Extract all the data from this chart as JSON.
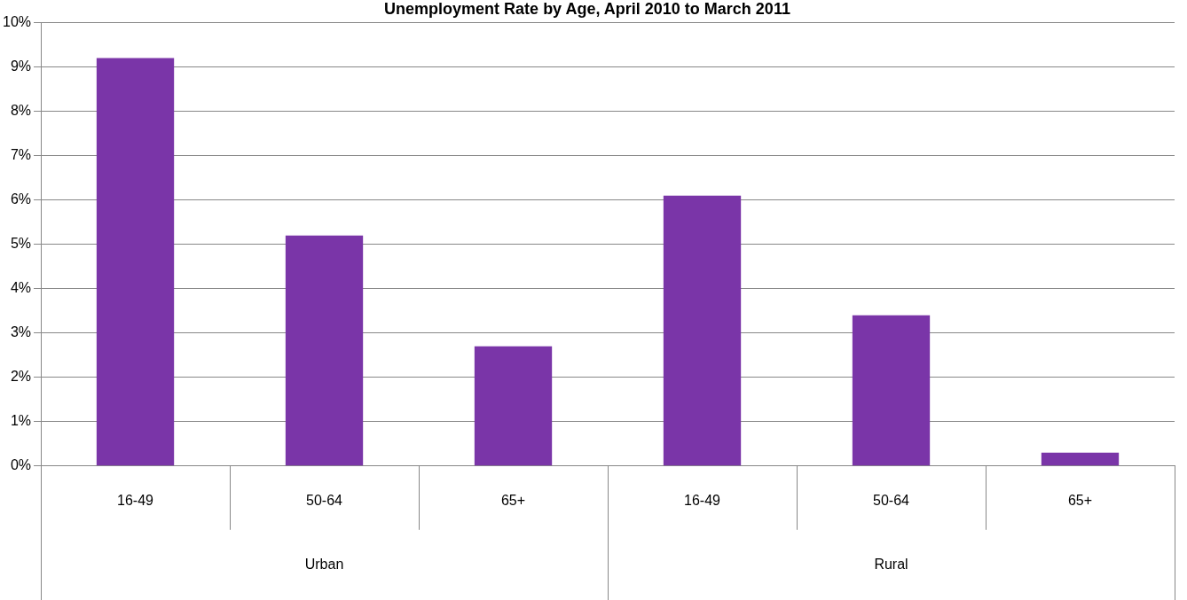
{
  "chart_data": {
    "type": "bar",
    "title": "Unemployment Rate by Age, April 2010 to March 2011",
    "categories": [
      "16-49",
      "50-64",
      "65+",
      "16-49",
      "50-64",
      "65+"
    ],
    "values": [
      9.2,
      5.2,
      2.7,
      6.1,
      3.4,
      0.3
    ],
    "color": "#7a35a8",
    "ylim": [
      0,
      10
    ],
    "yticks": [
      {
        "value": 0,
        "label": "0%"
      },
      {
        "value": 1,
        "label": "1%"
      },
      {
        "value": 2,
        "label": "2%"
      },
      {
        "value": 3,
        "label": "3%"
      },
      {
        "value": 4,
        "label": "4%"
      },
      {
        "value": 5,
        "label": "5%"
      },
      {
        "value": 6,
        "label": "6%"
      },
      {
        "value": 7,
        "label": "7%"
      },
      {
        "value": 8,
        "label": "8%"
      },
      {
        "value": 9,
        "label": "9%"
      },
      {
        "value": 10,
        "label": "10%"
      }
    ],
    "grid": "y",
    "legend": false,
    "annotations": [
      "Urban",
      "Rural"
    ]
  }
}
